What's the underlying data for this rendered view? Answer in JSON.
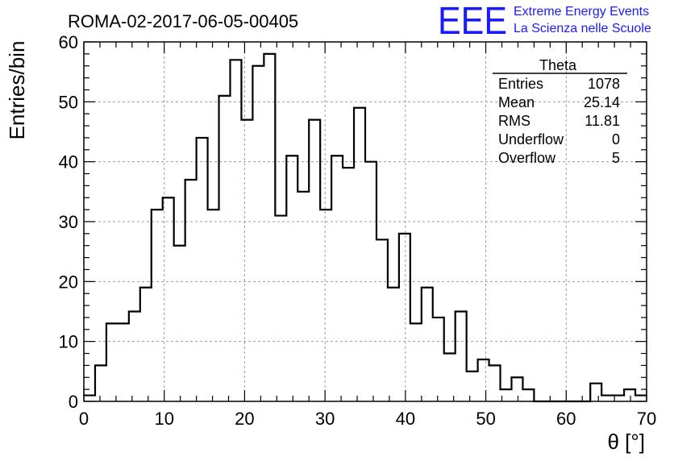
{
  "header": {
    "run_title": "ROMA-02-2017-06-05-00405",
    "logo_text": "EEE",
    "logo_line1": "Extreme Energy Events",
    "logo_line2": "La Scienza nelle Scuole"
  },
  "stats": {
    "title": "Theta",
    "rows": [
      {
        "label": "Entries",
        "value": "1078"
      },
      {
        "label": "Mean",
        "value": "25.14"
      },
      {
        "label": "RMS",
        "value": "11.81"
      },
      {
        "label": "Underflow",
        "value": "0"
      },
      {
        "label": "Overflow",
        "value": "5"
      }
    ]
  },
  "chart_data": {
    "type": "bar",
    "style": "step-histogram",
    "xlabel": "θ [°]",
    "ylabel": "Entries/bin",
    "xlim": [
      0,
      70
    ],
    "ylim": [
      0,
      60
    ],
    "bin_width": 1.4,
    "x_ticks": [
      0,
      10,
      20,
      30,
      40,
      50,
      60,
      70
    ],
    "y_ticks": [
      0,
      10,
      20,
      30,
      40,
      50,
      60
    ],
    "grid": true,
    "legend": "none",
    "line_color": "#000000",
    "values": [
      1,
      6,
      13,
      13,
      15,
      19,
      32,
      34,
      26,
      37,
      44,
      32,
      51,
      57,
      47,
      56,
      58,
      31,
      41,
      35,
      47,
      32,
      41,
      39,
      49,
      40,
      27,
      19,
      28,
      13,
      19,
      14,
      8,
      15,
      5,
      7,
      6,
      2,
      4,
      2,
      0,
      0,
      0,
      0,
      0,
      3,
      1,
      1,
      2,
      1
    ]
  }
}
